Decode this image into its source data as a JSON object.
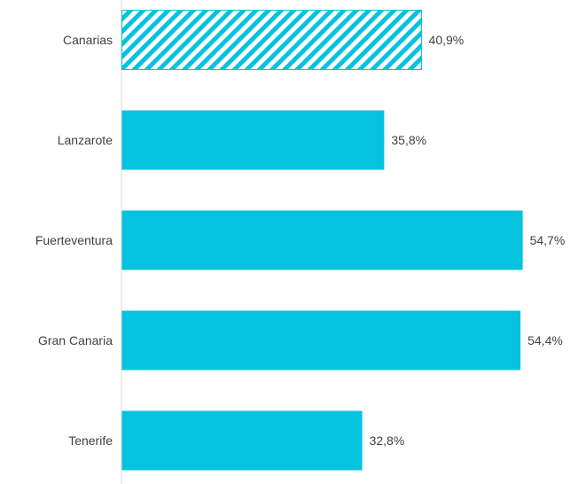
{
  "chart_data": {
    "type": "bar",
    "orientation": "horizontal",
    "categories": [
      "Canarias",
      "Lanzarote",
      "Fuerteventura",
      "Gran Canaria",
      "Tenerife"
    ],
    "values": [
      40.9,
      35.8,
      54.7,
      54.4,
      32.8
    ],
    "value_labels": [
      "40,9%",
      "35,8%",
      "54,7%",
      "54,4%",
      "32,8%"
    ],
    "highlight_category": "Canarias",
    "bar_color": "#05C3DE",
    "title": "",
    "xlabel": "",
    "ylabel": "",
    "xlim": [
      0,
      60
    ],
    "grid": false,
    "legend": "none"
  }
}
